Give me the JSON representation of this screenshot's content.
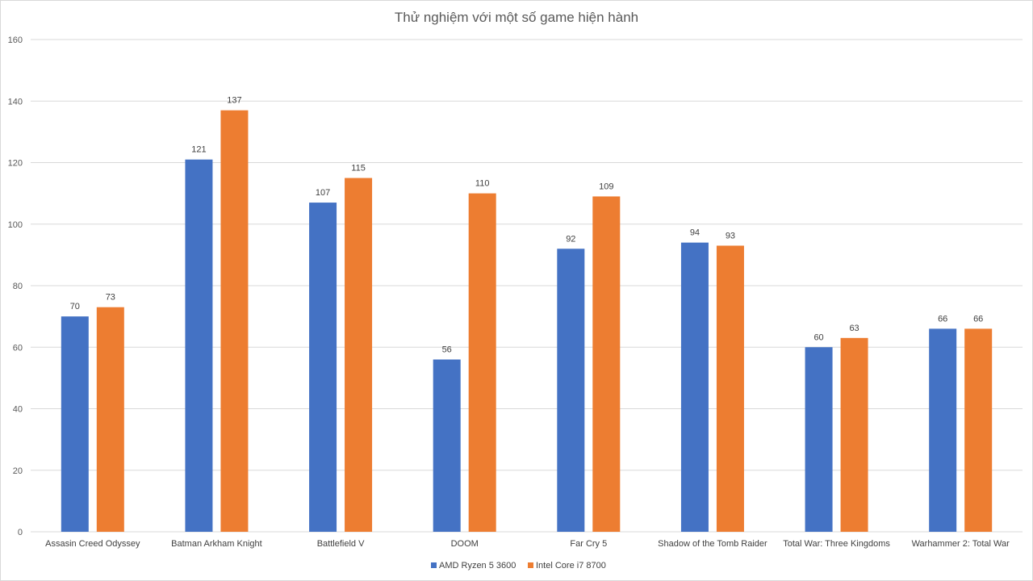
{
  "chart_data": {
    "type": "bar",
    "title": "Thử nghiệm với một số game hiện hành",
    "xlabel": "",
    "ylabel": "",
    "ylim": [
      0,
      160
    ],
    "y_ticks": [
      0,
      20,
      40,
      60,
      80,
      100,
      120,
      140,
      160
    ],
    "grid": true,
    "legend_position": "bottom",
    "categories": [
      "Assasin Creed Odyssey",
      "Batman Arkham Knight",
      "Battlefield V",
      "DOOM",
      "Far Cry 5",
      "Shadow of the Tomb Raider",
      "Total War: Three Kingdoms",
      "Warhammer 2: Total War"
    ],
    "series": [
      {
        "name": "AMD Ryzen 5 3600",
        "color": "#4472C4",
        "values": [
          70,
          121,
          107,
          56,
          92,
          94,
          60,
          66
        ]
      },
      {
        "name": "Intel Core i7 8700",
        "color": "#ED7D31",
        "values": [
          73,
          137,
          115,
          110,
          109,
          93,
          63,
          66
        ]
      }
    ]
  }
}
